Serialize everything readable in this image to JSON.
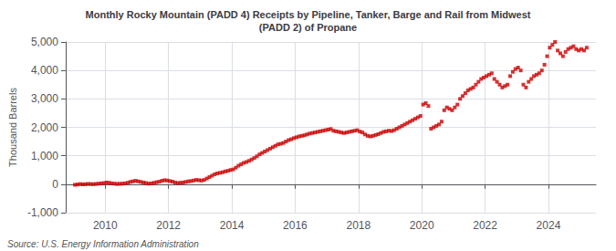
{
  "chart_data": {
    "type": "scatter",
    "title": "Monthly Rocky Mountain (PADD 4) Receipts by Pipeline, Tanker, Barge and Rail from Midwest\n(PADD 2) of Propane",
    "ylabel": "Thousand Barrels",
    "annotations": [
      "Source: U.S. Energy Information Administration"
    ],
    "color": "#cc0000",
    "marker": "square",
    "grid": true,
    "xlim": [
      2008.75,
      2025.5
    ],
    "xticks": [
      2010,
      2012,
      2014,
      2016,
      2018,
      2020,
      2022,
      2024
    ],
    "ylim": [
      -1000,
      5000
    ],
    "yticks": [
      {
        "value": -1000,
        "label": "-1,000"
      },
      0,
      {
        "value": 1000,
        "label": "1,000"
      },
      {
        "value": 2000,
        "label": "2,000"
      },
      {
        "value": 3000,
        "label": "3,000"
      },
      {
        "value": 4000,
        "label": "4,000"
      },
      {
        "value": 5000,
        "label": "5,000"
      }
    ],
    "x": [
      2009.0416666667,
      2009.125,
      2009.2083333333,
      2009.2916666667,
      2009.375,
      2009.4583333333,
      2009.5416666667,
      2009.625,
      2009.7083333333,
      2009.7916666667,
      2009.875,
      2009.9583333333,
      2010.0416666667,
      2010.125,
      2010.2083333333,
      2010.2916666667,
      2010.375,
      2010.4583333333,
      2010.5416666667,
      2010.625,
      2010.7083333333,
      2010.7916666667,
      2010.875,
      2010.9583333333,
      2011.0416666667,
      2011.125,
      2011.2083333333,
      2011.2916666667,
      2011.375,
      2011.4583333333,
      2011.5416666667,
      2011.625,
      2011.7083333333,
      2011.7916666667,
      2011.875,
      2011.9583333333,
      2012.0416666667,
      2012.125,
      2012.2083333333,
      2012.2916666667,
      2012.375,
      2012.4583333333,
      2012.5416666667,
      2012.625,
      2012.7083333333,
      2012.7916666667,
      2012.875,
      2012.9583333333,
      2013.0416666667,
      2013.125,
      2013.2083333333,
      2013.2916666667,
      2013.375,
      2013.4583333333,
      2013.5416666667,
      2013.625,
      2013.7083333333,
      2013.7916666667,
      2013.875,
      2013.9583333333,
      2014.0416666667,
      2014.125,
      2014.2083333333,
      2014.2916666667,
      2014.375,
      2014.4583333333,
      2014.5416666667,
      2014.625,
      2014.7083333333,
      2014.7916666667,
      2014.875,
      2014.9583333333,
      2015.0416666667,
      2015.125,
      2015.2083333333,
      2015.2916666667,
      2015.375,
      2015.4583333333,
      2015.5416666667,
      2015.625,
      2015.7083333333,
      2015.7916666667,
      2015.875,
      2015.9583333333,
      2016.0416666667,
      2016.125,
      2016.2083333333,
      2016.2916666667,
      2016.375,
      2016.4583333333,
      2016.5416666667,
      2016.625,
      2016.7083333333,
      2016.7916666667,
      2016.875,
      2016.9583333333,
      2017.0416666667,
      2017.125,
      2017.2083333333,
      2017.2916666667,
      2017.375,
      2017.4583333333,
      2017.5416666667,
      2017.625,
      2017.7083333333,
      2017.7916666667,
      2017.875,
      2017.9583333333,
      2018.0416666667,
      2018.125,
      2018.2083333333,
      2018.2916666667,
      2018.375,
      2018.4583333333,
      2018.5416666667,
      2018.625,
      2018.7083333333,
      2018.7916666667,
      2018.875,
      2018.9583333333,
      2019.0416666667,
      2019.125,
      2019.2083333333,
      2019.2916666667,
      2019.375,
      2019.4583333333,
      2019.5416666667,
      2019.625,
      2019.7083333333,
      2019.7916666667,
      2019.875,
      2019.9583333333,
      2020.0416666667,
      2020.125,
      2020.2083333333,
      2020.2916666667,
      2020.375,
      2020.4583333333,
      2020.5416666667,
      2020.625,
      2020.7083333333,
      2020.7916666667,
      2020.875,
      2020.9583333333,
      2021.0416666667,
      2021.125,
      2021.2083333333,
      2021.2916666667,
      2021.375,
      2021.4583333333,
      2021.5416666667,
      2021.625,
      2021.7083333333,
      2021.7916666667,
      2021.875,
      2021.9583333333,
      2022.0416666667,
      2022.125,
      2022.2083333333,
      2022.2916666667,
      2022.375,
      2022.4583333333,
      2022.5416666667,
      2022.625,
      2022.7083333333,
      2022.7916666667,
      2022.875,
      2022.9583333333,
      2023.0416666667,
      2023.125,
      2023.2083333333,
      2023.2916666667,
      2023.375,
      2023.4583333333,
      2023.5416666667,
      2023.625,
      2023.7083333333,
      2023.7916666667,
      2023.875,
      2023.9583333333,
      2024.0416666667,
      2024.125,
      2024.2083333333,
      2024.2916666667,
      2024.375,
      2024.4583333333,
      2024.5416666667,
      2024.625,
      2024.7083333333,
      2024.7916666667,
      2024.875,
      2024.9583333333,
      2025.0416666667,
      2025.125,
      2025.2083333333
    ],
    "values": [
      -20,
      -10,
      5,
      -5,
      0,
      10,
      5,
      0,
      10,
      20,
      30,
      40,
      60,
      50,
      30,
      20,
      10,
      15,
      20,
      30,
      50,
      80,
      100,
      120,
      100,
      80,
      60,
      40,
      20,
      30,
      50,
      70,
      90,
      120,
      140,
      130,
      110,
      90,
      60,
      40,
      50,
      60,
      80,
      100,
      110,
      130,
      150,
      140,
      130,
      150,
      200,
      250,
      300,
      350,
      380,
      400,
      420,
      450,
      470,
      500,
      520,
      580,
      650,
      700,
      750,
      780,
      820,
      870,
      920,
      980,
      1050,
      1100,
      1150,
      1200,
      1250,
      1300,
      1350,
      1400,
      1420,
      1450,
      1500,
      1550,
      1580,
      1620,
      1650,
      1680,
      1700,
      1720,
      1750,
      1780,
      1800,
      1820,
      1840,
      1860,
      1880,
      1900,
      1920,
      1940,
      1880,
      1860,
      1840,
      1820,
      1800,
      1820,
      1840,
      1860,
      1880,
      1900,
      1850,
      1820,
      1750,
      1700,
      1680,
      1700,
      1730,
      1760,
      1800,
      1840,
      1860,
      1880,
      1870,
      1900,
      1950,
      2000,
      2050,
      2100,
      2150,
      2200,
      2250,
      2300,
      2350,
      2400,
      2800,
      2850,
      2750,
      1950,
      2000,
      2050,
      2100,
      2200,
      2600,
      2700,
      2650,
      2600,
      2700,
      2800,
      3000,
      3100,
      3200,
      3300,
      3350,
      3400,
      3500,
      3600,
      3700,
      3750,
      3800,
      3850,
      3900,
      3700,
      3600,
      3500,
      3400,
      3450,
      3500,
      3800,
      3950,
      4050,
      4100,
      4000,
      3500,
      3400,
      3600,
      3700,
      3800,
      3850,
      3900,
      4000,
      4200,
      4500,
      4800,
      4900,
      5000,
      4700,
      4600,
      4500,
      4650,
      4750,
      4800,
      4850,
      4750,
      4700,
      4750,
      4700,
      4800
    ]
  }
}
